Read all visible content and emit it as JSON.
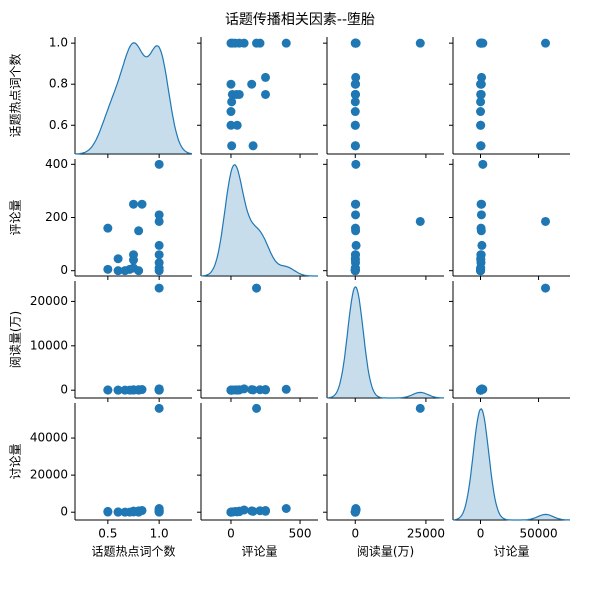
{
  "chart_data": {
    "type": "pairplot",
    "title": "话题传播相关因素--堕胎",
    "color": "#1f77b4",
    "variables": [
      {
        "name": "话题热点词个数",
        "values": [
          1.0,
          1.0,
          1.0,
          1.0,
          1.0,
          1.0,
          1.0,
          1.0,
          0.833,
          0.75,
          0.8,
          0.8,
          0.75,
          0.75,
          0.75,
          0.714,
          0.667,
          0.6,
          0.6,
          0.5,
          0.5
        ],
        "xlim": [
          0.18,
          1.32
        ],
        "ylim": [
          0.46,
          1.03
        ],
        "xticks": [
          0.5,
          {
            "value": 1,
            "label": "1.0"
          }
        ],
        "yticks": [
          0.6,
          0.8,
          {
            "value": 1,
            "label": "1.0"
          }
        ]
      },
      {
        "name": "评论量",
        "values": [
          400,
          210,
          185,
          95,
          60,
          10,
          0,
          30,
          250,
          250,
          150,
          0,
          10,
          40,
          60,
          5,
          0,
          0,
          45,
          5,
          160
        ],
        "xlim": [
          -217,
          630
        ],
        "ylim": [
          -20,
          420
        ],
        "xticks": [
          0,
          500
        ],
        "yticks": [
          0,
          200,
          400
        ]
      },
      {
        "name": "阅读量(万)",
        "values": [
          200,
          100,
          23000,
          300,
          50,
          20,
          10,
          80,
          150,
          60,
          120,
          5,
          30,
          40,
          90,
          10,
          5,
          8,
          25,
          15,
          70
        ],
        "xlim": [
          -10000,
          31400
        ],
        "ylim": [
          -1760,
          24600
        ],
        "xticks": [
          0,
          25000
        ],
        "yticks": [
          0,
          10000,
          20000
        ]
      },
      {
        "name": "讨论量",
        "values": [
          2000,
          800,
          56000,
          1200,
          300,
          100,
          50,
          400,
          900,
          500,
          700,
          20,
          150,
          250,
          600,
          60,
          30,
          40,
          180,
          90,
          450
        ],
        "xlim": [
          -23700,
          77100
        ],
        "ylim": [
          -4200,
          58900
        ],
        "xticks": [
          0,
          50000
        ],
        "yticks": [
          0,
          20000,
          40000
        ]
      }
    ]
  }
}
